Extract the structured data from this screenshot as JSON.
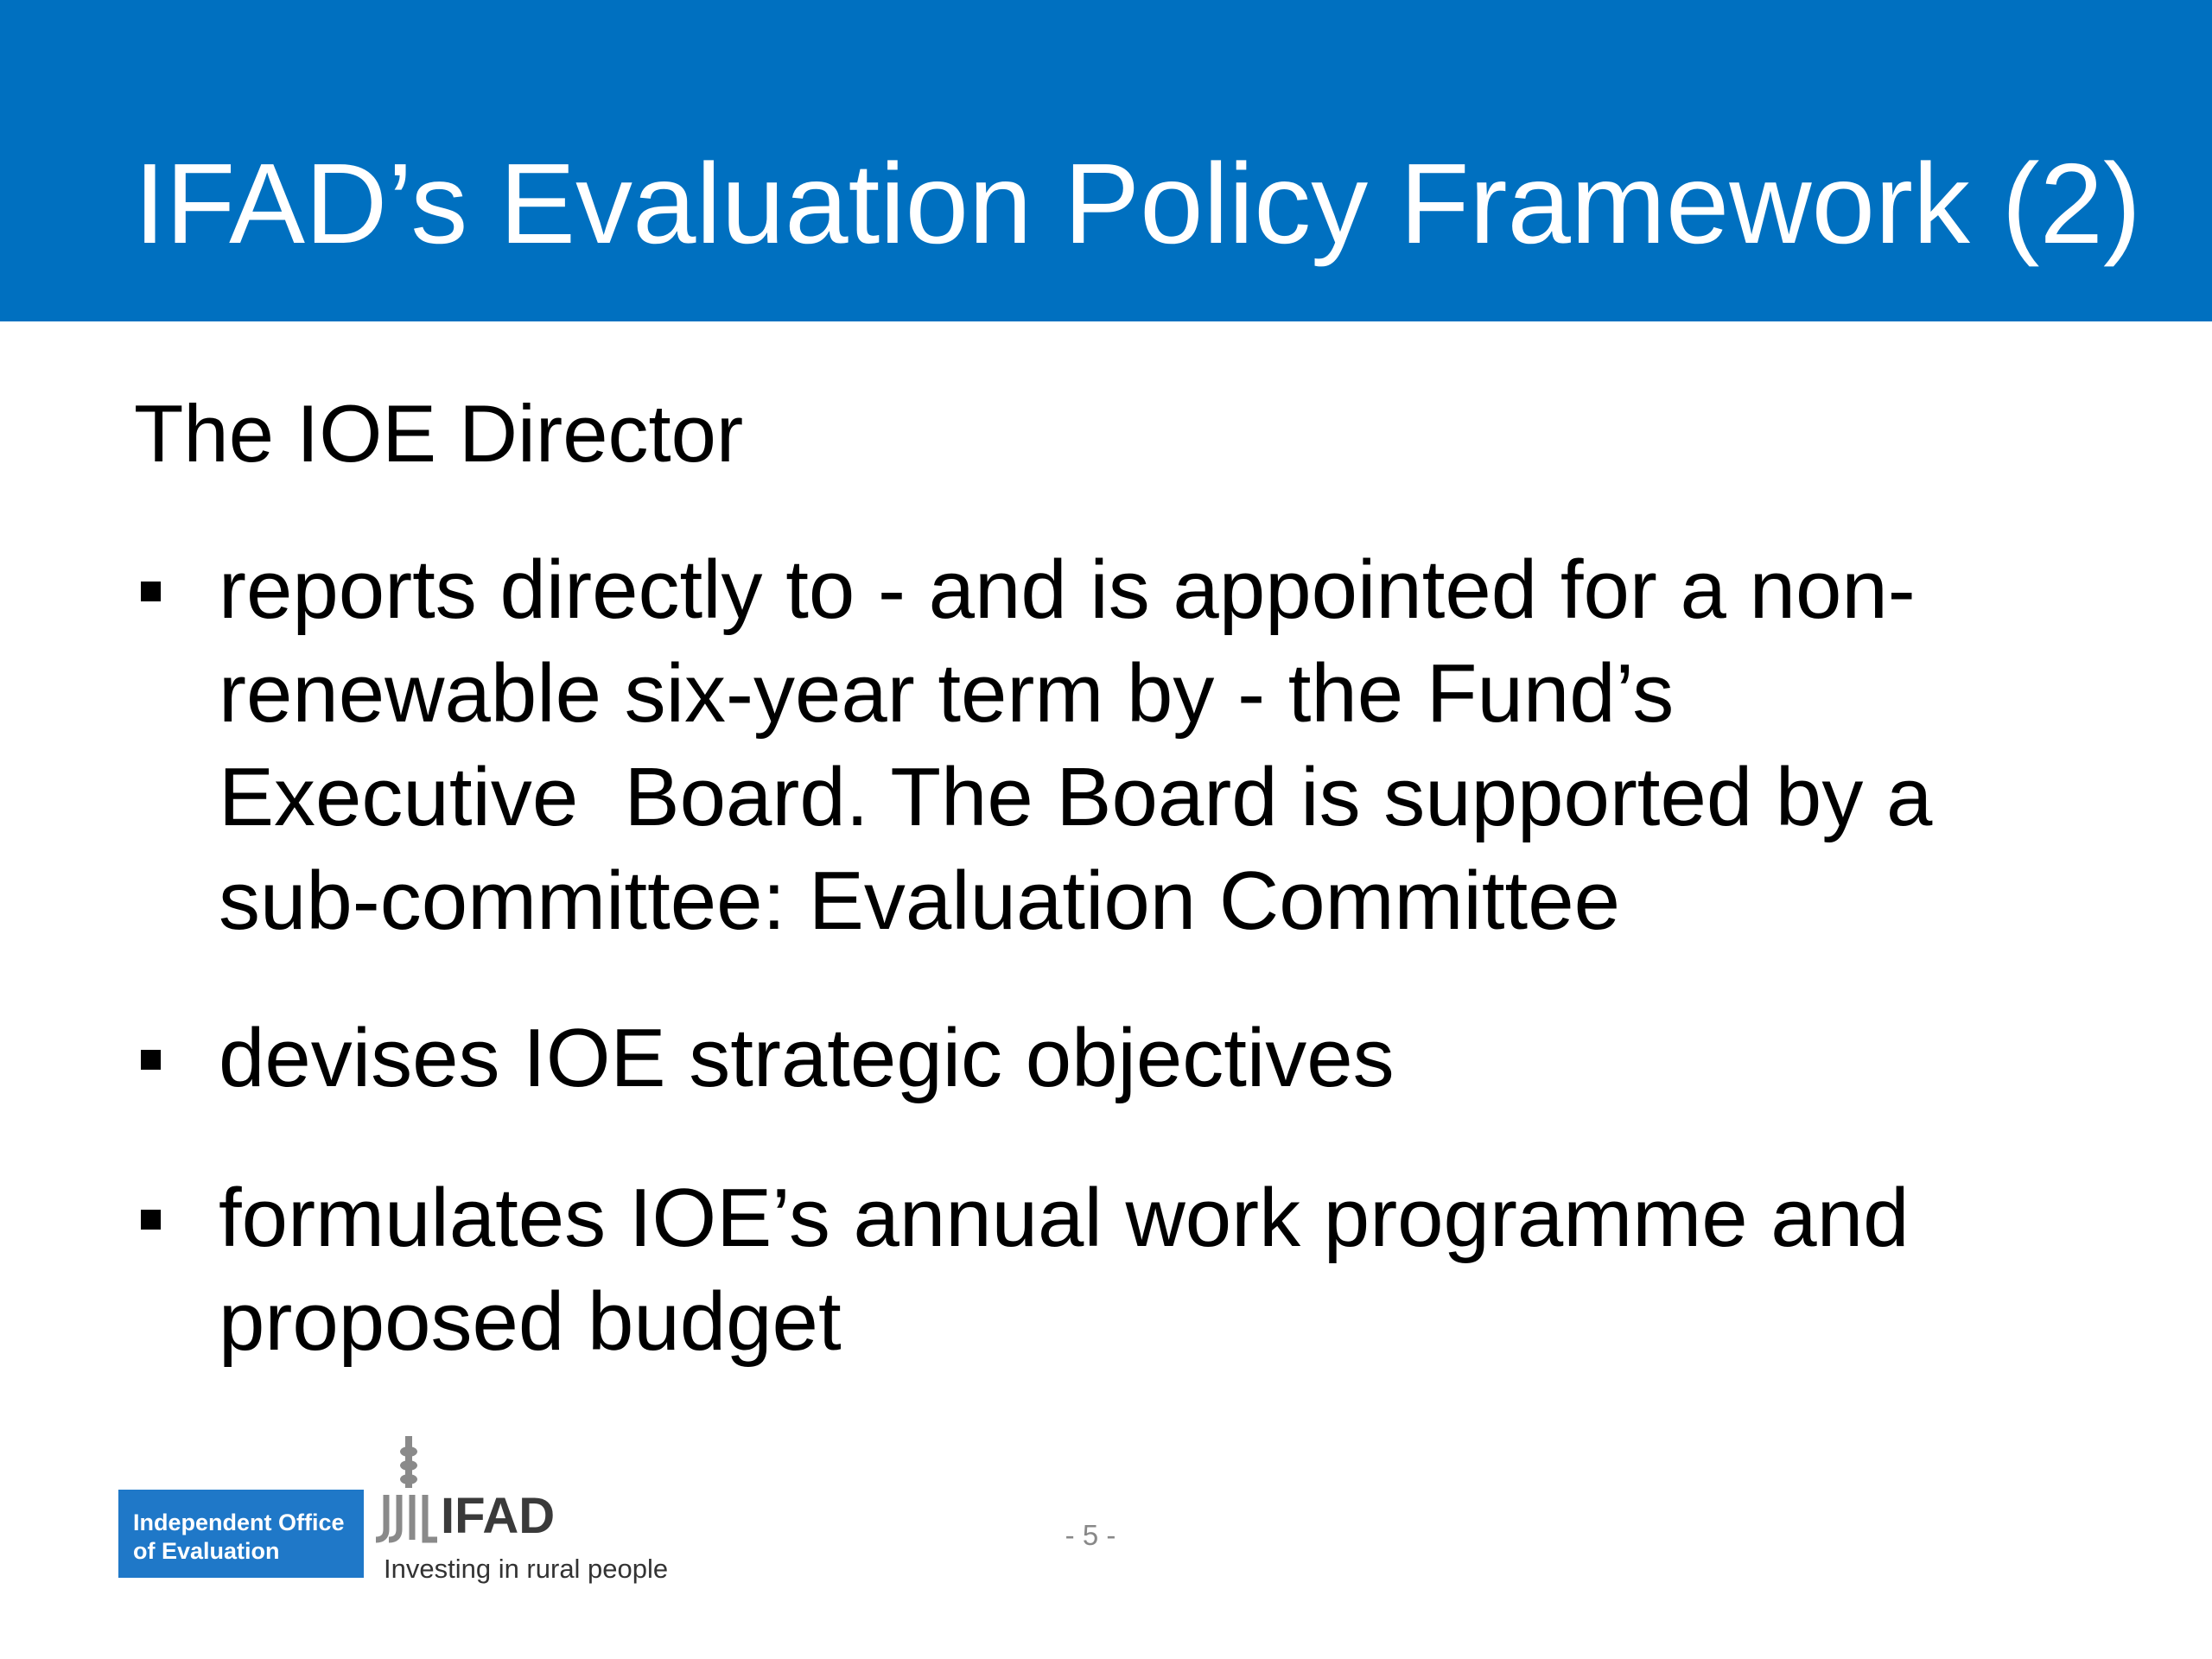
{
  "header": {
    "title": "IFAD’s Evaluation Policy Framework (2)"
  },
  "body": {
    "intro": "The IOE Director",
    "bullets": [
      [
        "reports directly to - and is appointed for a non-",
        "renewable six-year term by - the Fund’s",
        "Executive  Board. The Board is supported by a",
        "sub-committee: Evaluation Committee"
      ],
      [
        "devises IOE strategic objectives"
      ],
      [
        "formulates IOE’s annual work programme and",
        "proposed budget"
      ]
    ]
  },
  "footer": {
    "office_logo": [
      "Independent Office",
      "of Evaluation"
    ],
    "ifad_logo": "IFAD",
    "tagline": "Investing in rural people",
    "page_number": "- 5 -"
  }
}
